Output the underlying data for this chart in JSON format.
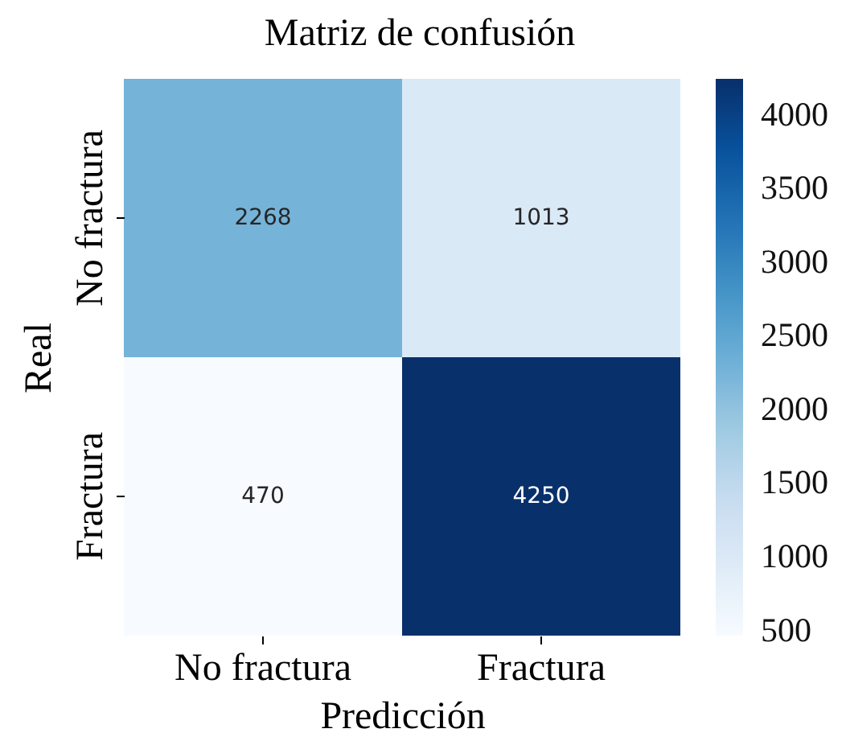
{
  "chart_data": {
    "type": "heatmap",
    "title": "Matriz de confusión",
    "xlabel": "Predicción",
    "ylabel": "Real",
    "categories": [
      "No fractura",
      "Fractura"
    ],
    "y_categories": [
      "No fractura",
      "Fractura"
    ],
    "cells": [
      [
        2268,
        1013
      ],
      [
        470,
        4250
      ]
    ],
    "clim": [
      470,
      4250
    ],
    "cticks": [
      500,
      1000,
      1500,
      2000,
      2500,
      3000,
      3500,
      4000
    ],
    "data_labels": true
  }
}
